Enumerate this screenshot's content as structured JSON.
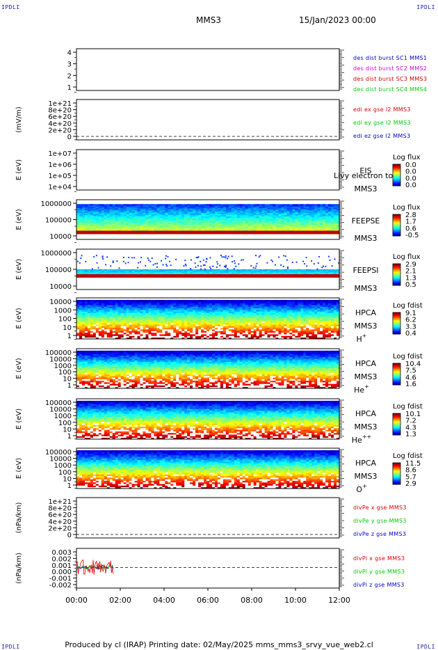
{
  "header": {
    "corner_tl": "IPDLI",
    "corner_tr": "IPDLI",
    "corner_bl": "IPDLI",
    "corner_br": "IPDLI",
    "mission": "MMS3",
    "datetime": "15/Jan/2023 00:00"
  },
  "footer": {
    "text": "Produced by cl (IRAP)   Printing date: 02/May/2025   mms_mms3_srvy_vue_web2.cl"
  },
  "overlay_text": "Livy electron to",
  "colors": {
    "mms1": "#0000cc",
    "mms2": "#cc00cc",
    "mms3": "#cc0000",
    "mms4": "#00cc00",
    "x": "#dd0000",
    "y": "#00cc00",
    "z": "#0000cc"
  },
  "chart_data": {
    "type": "multi-panel time series / spectrogram",
    "x_tick_labels": [
      "00:00",
      "02:00",
      "04:00",
      "06:00",
      "08:00",
      "10:00",
      "12:00"
    ],
    "x_range_hours": [
      0,
      12
    ],
    "panels": [
      {
        "id": "des",
        "type": "line",
        "ylabel": "",
        "yticks": [
          "1",
          "2",
          "3",
          "4"
        ],
        "legend": [
          {
            "label": "des dist burst SC1 MMS1",
            "color": "#0000cc"
          },
          {
            "label": "des dist burst SC2 MMS2",
            "color": "#cc00cc"
          },
          {
            "label": "des dist burst SC3 MMS3",
            "color": "#cc0000"
          },
          {
            "label": "des dist burst SC4 MMS4",
            "color": "#00cc00"
          }
        ]
      },
      {
        "id": "edi",
        "type": "line",
        "ylabel": "(mV/m)",
        "yticks": [
          "0",
          "2e+20",
          "4e+20",
          "6e+20",
          "8e+20",
          "1e+21"
        ],
        "legend": [
          {
            "label": "edi ex gse l2 MMS3",
            "color": "#dd0000"
          },
          {
            "label": "edi ey gse l2 MMS3",
            "color": "#00cc00"
          },
          {
            "label": "edi ez gse l2 MMS3",
            "color": "#0000cc"
          }
        ]
      },
      {
        "id": "eis",
        "type": "heatmap",
        "ylabel": "E (eV)",
        "yticks": [
          "1e+04",
          "1e+05",
          "1e+06",
          "1e+07"
        ],
        "labels": [
          "EIS",
          "MMS3"
        ],
        "colorbar": {
          "title": "Log flux",
          "ticks": [
            "0.0",
            "0.0",
            "0.0",
            "0.0"
          ]
        }
      },
      {
        "id": "feepse",
        "type": "heatmap",
        "ylabel": "E (eV)",
        "yticks": [
          "10000",
          "100000",
          "1000000"
        ],
        "labels": [
          "FEEPSE",
          "MMS3"
        ],
        "colorbar": {
          "title": "Log flux",
          "ticks": [
            "2.8",
            "1.7",
            "0.6",
            "-0.5"
          ]
        }
      },
      {
        "id": "feepsi",
        "type": "heatmap",
        "ylabel": "E (eV)",
        "yticks": [
          "10000",
          "100000",
          "1000000"
        ],
        "labels": [
          "FEEPSI",
          "MMS3"
        ],
        "colorbar": {
          "title": "Log flux",
          "ticks": [
            "2.9",
            "2.1",
            "1.3",
            "0.5"
          ]
        }
      },
      {
        "id": "hpca_h",
        "type": "heatmap",
        "ylabel": "E (eV)",
        "yticks": [
          "1",
          "10",
          "100",
          "1000",
          "10000"
        ],
        "labels": [
          "HPCA",
          "MMS3"
        ],
        "species": "H",
        "species_sup": "+",
        "colorbar": {
          "title": "Log fdist",
          "ticks": [
            "9.1",
            "6.2",
            "3.3",
            "0.4"
          ]
        }
      },
      {
        "id": "hpca_he",
        "type": "heatmap",
        "ylabel": "E (eV)",
        "yticks": [
          "1",
          "10",
          "100",
          "1000",
          "10000",
          "100000"
        ],
        "labels": [
          "HPCA",
          "MMS3"
        ],
        "species": "He",
        "species_sup": "+",
        "colorbar": {
          "title": "Log fdist",
          "ticks": [
            "10.4",
            "7.5",
            "4.6",
            "1.6"
          ]
        }
      },
      {
        "id": "hpca_he2",
        "type": "heatmap",
        "ylabel": "E (eV)",
        "yticks": [
          "1",
          "10",
          "100",
          "1000",
          "10000",
          "100000"
        ],
        "labels": [
          "HPCA",
          "MMS3"
        ],
        "species": "He",
        "species_sup": "++",
        "colorbar": {
          "title": "Log fdist",
          "ticks": [
            "10.1",
            "7.2",
            "4.3",
            "1.3"
          ]
        }
      },
      {
        "id": "hpca_o",
        "type": "heatmap",
        "ylabel": "E (eV)",
        "yticks": [
          "1",
          "10",
          "100",
          "1000",
          "10000",
          "100000"
        ],
        "labels": [
          "HPCA",
          "MMS3"
        ],
        "species": "O",
        "species_sup": "+",
        "colorbar": {
          "title": "Log fdist",
          "ticks": [
            "11.5",
            "8.6",
            "5.7",
            "2.9"
          ]
        }
      },
      {
        "id": "divpe",
        "type": "line",
        "ylabel": "(nPa/km)",
        "yticks": [
          "0",
          "2e+20",
          "4e+20",
          "6e+20",
          "8e+20",
          "1e+21"
        ],
        "legend": [
          {
            "label": "divPe x gse MMS3",
            "color": "#dd0000"
          },
          {
            "label": "divPe y gse MMS3",
            "color": "#00cc00"
          },
          {
            "label": "divPe z gse MMS3",
            "color": "#0000cc"
          }
        ]
      },
      {
        "id": "divpi",
        "type": "line",
        "ylabel": "(nPa/km)",
        "yticks": [
          "-0.002",
          "-0.001",
          "0.000",
          "0.001",
          "0.002",
          "0.003"
        ],
        "data_span_hours": [
          0,
          1.7
        ],
        "legend": [
          {
            "label": "divPi x gse MMS3",
            "color": "#dd0000"
          },
          {
            "label": "divPi y gse MMS3",
            "color": "#00cc00"
          },
          {
            "label": "divPi z gse MMS3",
            "color": "#0000cc"
          }
        ]
      }
    ]
  }
}
